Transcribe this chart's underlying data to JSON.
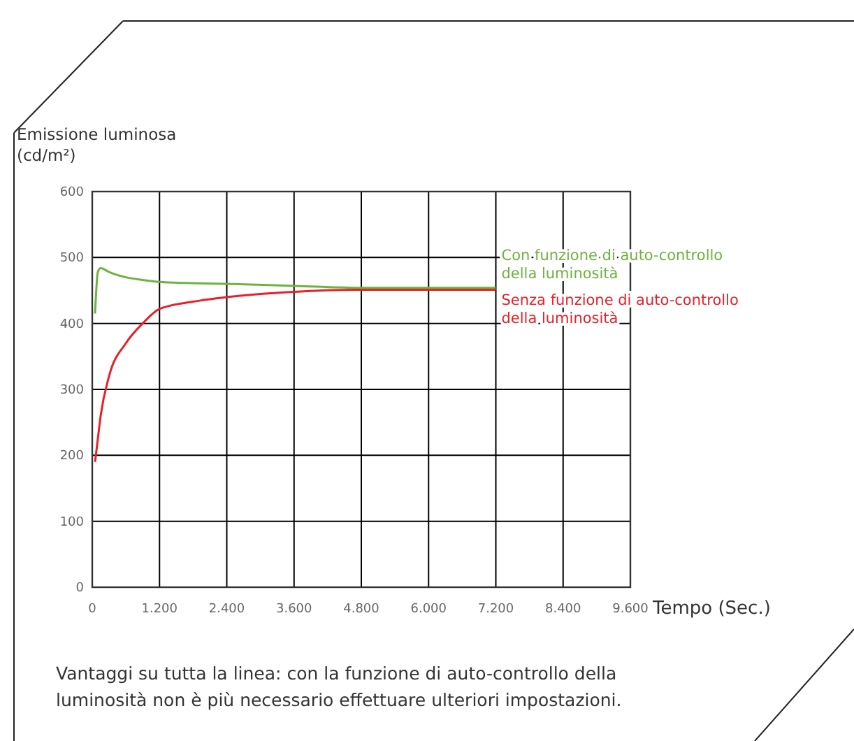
{
  "chart_data": {
    "type": "line",
    "xlabel": "Tempo (Sec.)",
    "ylabel": "Emissione luminosa (cd/m²)",
    "xlim": [
      0,
      9600
    ],
    "ylim": [
      0,
      600
    ],
    "xticks": [
      0,
      {
        "value": 1200,
        "label": "1.200"
      },
      {
        "value": 2400,
        "label": "2.400"
      },
      {
        "value": 3600,
        "label": "3.600"
      },
      {
        "value": 4800,
        "label": "4.800"
      },
      {
        "value": 6000,
        "label": "6.000"
      },
      {
        "value": 7200,
        "label": "7.200"
      },
      {
        "value": 8400,
        "label": "8.400"
      },
      {
        "value": 9600,
        "label": "9.600"
      }
    ],
    "yticks": [
      0,
      100,
      200,
      300,
      400,
      500,
      600
    ],
    "grid": true,
    "legend": "right",
    "x": [
      50,
      100,
      150,
      300,
      600,
      900,
      1200,
      1800,
      2400,
      3600,
      4800,
      6000,
      7200
    ],
    "series": [
      {
        "name": "Con funzione di auto-controllo della luminosità",
        "color": "#6db33f",
        "values": [
          415,
          478,
          484,
          478,
          470,
          466,
          463,
          461,
          460,
          457,
          454,
          454,
          454
        ]
      },
      {
        "name": "Senza funzione di auto-controllo della luminosità",
        "color": "#e8202a",
        "values": [
          190,
          225,
          260,
          320,
          370,
          400,
          422,
          433,
          440,
          448,
          451,
          451,
          451
        ]
      }
    ],
    "annotations": [
      "Vantaggi su tutta la linea: con la funzione di auto-controllo della luminosità non è più necessario effettuare ulteriori impostazioni."
    ]
  }
}
